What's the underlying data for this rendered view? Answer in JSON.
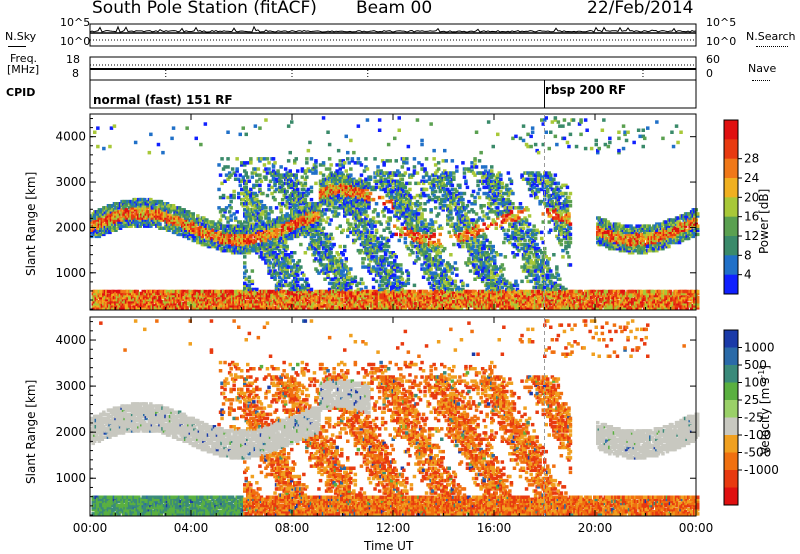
{
  "header": {
    "station": "South Pole Station (fitACF)",
    "beam": "Beam 00",
    "date": "22/Feb/2014"
  },
  "side_labels": {
    "nsky": "N.Sky",
    "nsearch": "N.Search",
    "freq_line1": "Freq.",
    "freq_line2": "[MHz]",
    "nave": "Nave",
    "cpid": "CPID",
    "nsky_top": "10^5",
    "nsky_bottom": "10^0",
    "nsearch_top": "10^5",
    "nsearch_bottom": "10^0",
    "freq_top": "18",
    "freq_bottom": "8",
    "nave_top": "60",
    "nave_bottom": "0"
  },
  "cpid_segments": [
    {
      "label": "normal (fast) 151 RF",
      "start_hour": 0
    },
    {
      "label": "rbsp 200 RF",
      "start_hour": 18.0
    }
  ],
  "chart_data": [
    {
      "type": "heatmap",
      "name": "power",
      "xlabel": "",
      "ylabel": "Slant Range [km]",
      "xlim": [
        0,
        24
      ],
      "ylim": [
        180,
        4500
      ],
      "yticks": [
        1000,
        2000,
        3000,
        4000
      ],
      "colorbar_label": "Power [dB]",
      "colorbar_ticks": [
        "4",
        "8",
        "12",
        "16",
        "20",
        "24",
        "28"
      ],
      "colorbar_colors": [
        "#1020ff",
        "#2070c8",
        "#3a8a6a",
        "#5aa050",
        "#a8c838",
        "#f0b020",
        "#f07818",
        "#e83a10",
        "#e01010"
      ]
    },
    {
      "type": "heatmap",
      "name": "velocity",
      "xlabel": "Time UT",
      "ylabel": "Slant Range [km]",
      "xlim": [
        0,
        24
      ],
      "ylim": [
        180,
        4500
      ],
      "yticks": [
        1000,
        2000,
        3000,
        4000
      ],
      "xticks": [
        "00:00",
        "04:00",
        "08:00",
        "12:00",
        "16:00",
        "20:00",
        "00:00"
      ],
      "colorbar_label": "Velocity [m s^-1]",
      "colorbar_ticks": [
        "1000",
        "500",
        "100",
        "25",
        "-25",
        "-100",
        "-500",
        "-1000"
      ],
      "colorbar_colors": [
        "#1a3aa8",
        "#2a6aa8",
        "#3a8a7a",
        "#5ab040",
        "#9ad068",
        "#c8c8c0",
        "#f0a020",
        "#f07010",
        "#e83a10",
        "#e01010"
      ]
    }
  ]
}
